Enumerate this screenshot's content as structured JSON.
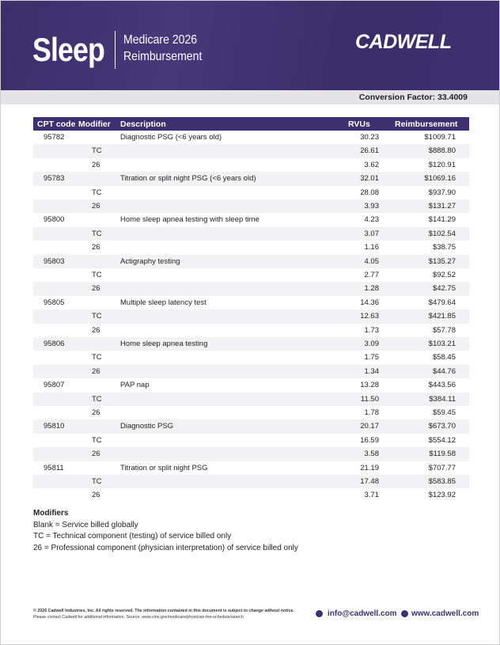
{
  "header": {
    "title": "Sleep",
    "subtitle": [
      "Medicare 2026",
      "Reimbursement"
    ],
    "logo": "CADWELL"
  },
  "conversion_factor": {
    "label": "Conversion Factor:",
    "value": "33.4009"
  },
  "table": {
    "columns": {
      "cpt": "CPT code",
      "modifier": "Modifier",
      "description": "Description",
      "rvus": "RVUs",
      "reimbursement": "Reimbursement"
    },
    "rows": [
      {
        "cpt": "95782",
        "description": "Diagnostic PSG (<6 years old)",
        "rvus": "30.23",
        "reimbursement": "$1009.71"
      },
      {
        "modifier": "TC",
        "rvus": "26.61",
        "reimbursement": "$888.80"
      },
      {
        "modifier": "26",
        "rvus": "3.62",
        "reimbursement": "$120.91"
      },
      {
        "cpt": "95783",
        "description": "Titration or split night PSG (<6 years old)",
        "rvus": "32.01",
        "reimbursement": "$1069.16"
      },
      {
        "modifier": "TC",
        "rvus": "28.08",
        "reimbursement": "$937.90"
      },
      {
        "modifier": "26",
        "rvus": "3.93",
        "reimbursement": "$131.27"
      },
      {
        "cpt": "95800",
        "description": "Home sleep apnea testing with sleep time",
        "rvus": "4.23",
        "reimbursement": "$141.29"
      },
      {
        "modifier": "TC",
        "rvus": "3.07",
        "reimbursement": "$102.54"
      },
      {
        "modifier": "26",
        "rvus": "1.16",
        "reimbursement": "$38.75"
      },
      {
        "cpt": "95803",
        "description": "Actigraphy testing",
        "rvus": "4.05",
        "reimbursement": "$135.27"
      },
      {
        "modifier": "TC",
        "rvus": "2.77",
        "reimbursement": "$92.52"
      },
      {
        "modifier": "26",
        "rvus": "1.28",
        "reimbursement": "$42.75"
      },
      {
        "cpt": "95805",
        "description": "Multiple sleep latency test",
        "rvus": "14.36",
        "reimbursement": "$479.64"
      },
      {
        "modifier": "TC",
        "rvus": "12.63",
        "reimbursement": "$421.85"
      },
      {
        "modifier": "26",
        "rvus": "1.73",
        "reimbursement": "$57.78"
      },
      {
        "cpt": "95806",
        "description": "Home sleep apnea testing",
        "rvus": "3.09",
        "reimbursement": "$103.21"
      },
      {
        "modifier": "TC",
        "rvus": "1.75",
        "reimbursement": "$58.45"
      },
      {
        "modifier": "26",
        "rvus": "1.34",
        "reimbursement": "$44.76"
      },
      {
        "cpt": "95807",
        "description": "PAP nap",
        "rvus": "13.28",
        "reimbursement": "$443.56"
      },
      {
        "modifier": "TC",
        "rvus": "11.50",
        "reimbursement": "$384.11"
      },
      {
        "modifier": "26",
        "rvus": "1.78",
        "reimbursement": "$59.45"
      },
      {
        "cpt": "95810",
        "description": "Diagnostic PSG",
        "rvus": "20.17",
        "reimbursement": "$673.70"
      },
      {
        "modifier": "TC",
        "rvus": "16.59",
        "reimbursement": "$554.12"
      },
      {
        "modifier": "26",
        "rvus": "3.58",
        "reimbursement": "$119.58"
      },
      {
        "cpt": "95811",
        "description": "Titration or split night PSG",
        "rvus": "21.19",
        "reimbursement": "$707.77"
      },
      {
        "modifier": "TC",
        "rvus": "17.48",
        "reimbursement": "$583.85"
      },
      {
        "modifier": "26",
        "rvus": "3.71",
        "reimbursement": "$123.92"
      }
    ]
  },
  "modifiers": {
    "title": "Modifiers",
    "items": [
      "Blank = Service billed globally",
      "TC = Technical component (testing) of service billed only",
      "26 = Professional component (physician interpretation) of service billed only"
    ]
  },
  "footer": {
    "legal": [
      "© 2026 Cadwell Industries, Inc. All rights reserved. The information contained in this document is subject to change without notice.",
      "Please contact Cadwell for additional information. Source: www.cms.gov/medicare/physician-fee-schedule/search"
    ],
    "links": [
      "info@cadwell.com",
      "www.cadwell.com"
    ]
  }
}
